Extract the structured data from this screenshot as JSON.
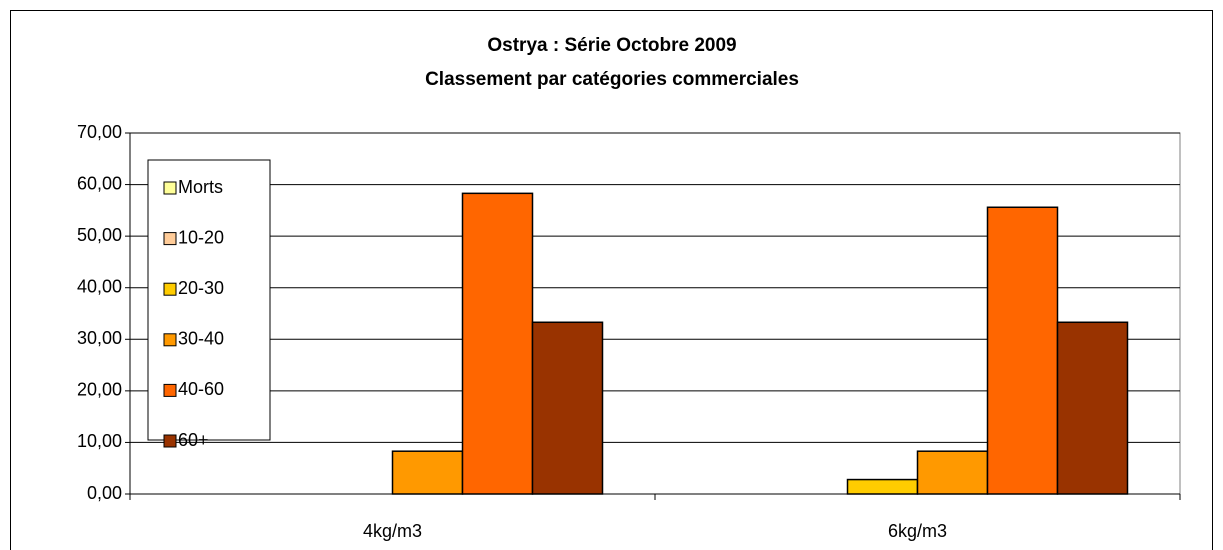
{
  "chart_data": {
    "type": "bar",
    "title": "Ostrya : Série Octobre 2009",
    "subtitle": "Classement par catégories commerciales",
    "categories": [
      "4kg/m3",
      "6kg/m3"
    ],
    "series": [
      {
        "name": "Morts",
        "color": "#ffff99",
        "values": [
          0,
          0
        ]
      },
      {
        "name": "10-20",
        "color": "#ffcc99",
        "values": [
          0,
          0
        ]
      },
      {
        "name": "20-30",
        "color": "#ffcc00",
        "values": [
          0,
          2.8
        ]
      },
      {
        "name": "30-40",
        "color": "#ff9900",
        "values": [
          8.3,
          8.3
        ]
      },
      {
        "name": "40-60",
        "color": "#ff6600",
        "values": [
          58.3,
          55.6
        ]
      },
      {
        "name": "60+",
        "color": "#993300",
        "values": [
          33.3,
          33.3
        ]
      }
    ],
    "ylim": [
      0,
      70
    ],
    "yticks": [
      {
        "value": 0,
        "label": "0,00"
      },
      {
        "value": 10,
        "label": "10,00"
      },
      {
        "value": 20,
        "label": "20,00"
      },
      {
        "value": 30,
        "label": "30,00"
      },
      {
        "value": 40,
        "label": "40,00"
      },
      {
        "value": 50,
        "label": "50,00"
      },
      {
        "value": 60,
        "label": "60,00"
      },
      {
        "value": 70,
        "label": "70,00"
      }
    ],
    "grid": true,
    "legend": "left"
  }
}
